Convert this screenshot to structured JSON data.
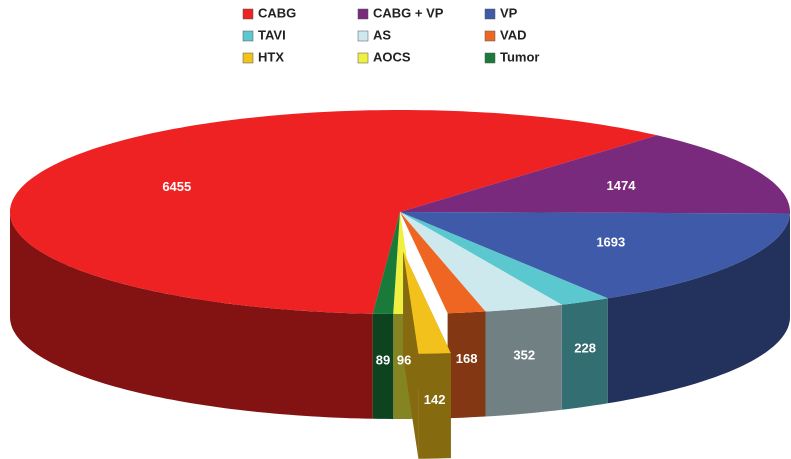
{
  "chart_data": {
    "type": "pie",
    "categories": [
      "CABG",
      "CABG + VP",
      "VP",
      "TAVI",
      "AS",
      "VAD",
      "HTX",
      "AOCS",
      "Tumor"
    ],
    "values": [
      6455,
      1474,
      1693,
      228,
      352,
      168,
      142,
      96,
      89
    ],
    "colors": [
      "#ee2222",
      "#7a2a7c",
      "#3f5aa8",
      "#5bc8d0",
      "#cde9ee",
      "#ee6622",
      "#f2c11c",
      "#f0f040",
      "#1a7a3a"
    ],
    "explode": [
      false,
      false,
      false,
      false,
      false,
      false,
      true,
      false,
      false
    ],
    "legend": "top"
  }
}
